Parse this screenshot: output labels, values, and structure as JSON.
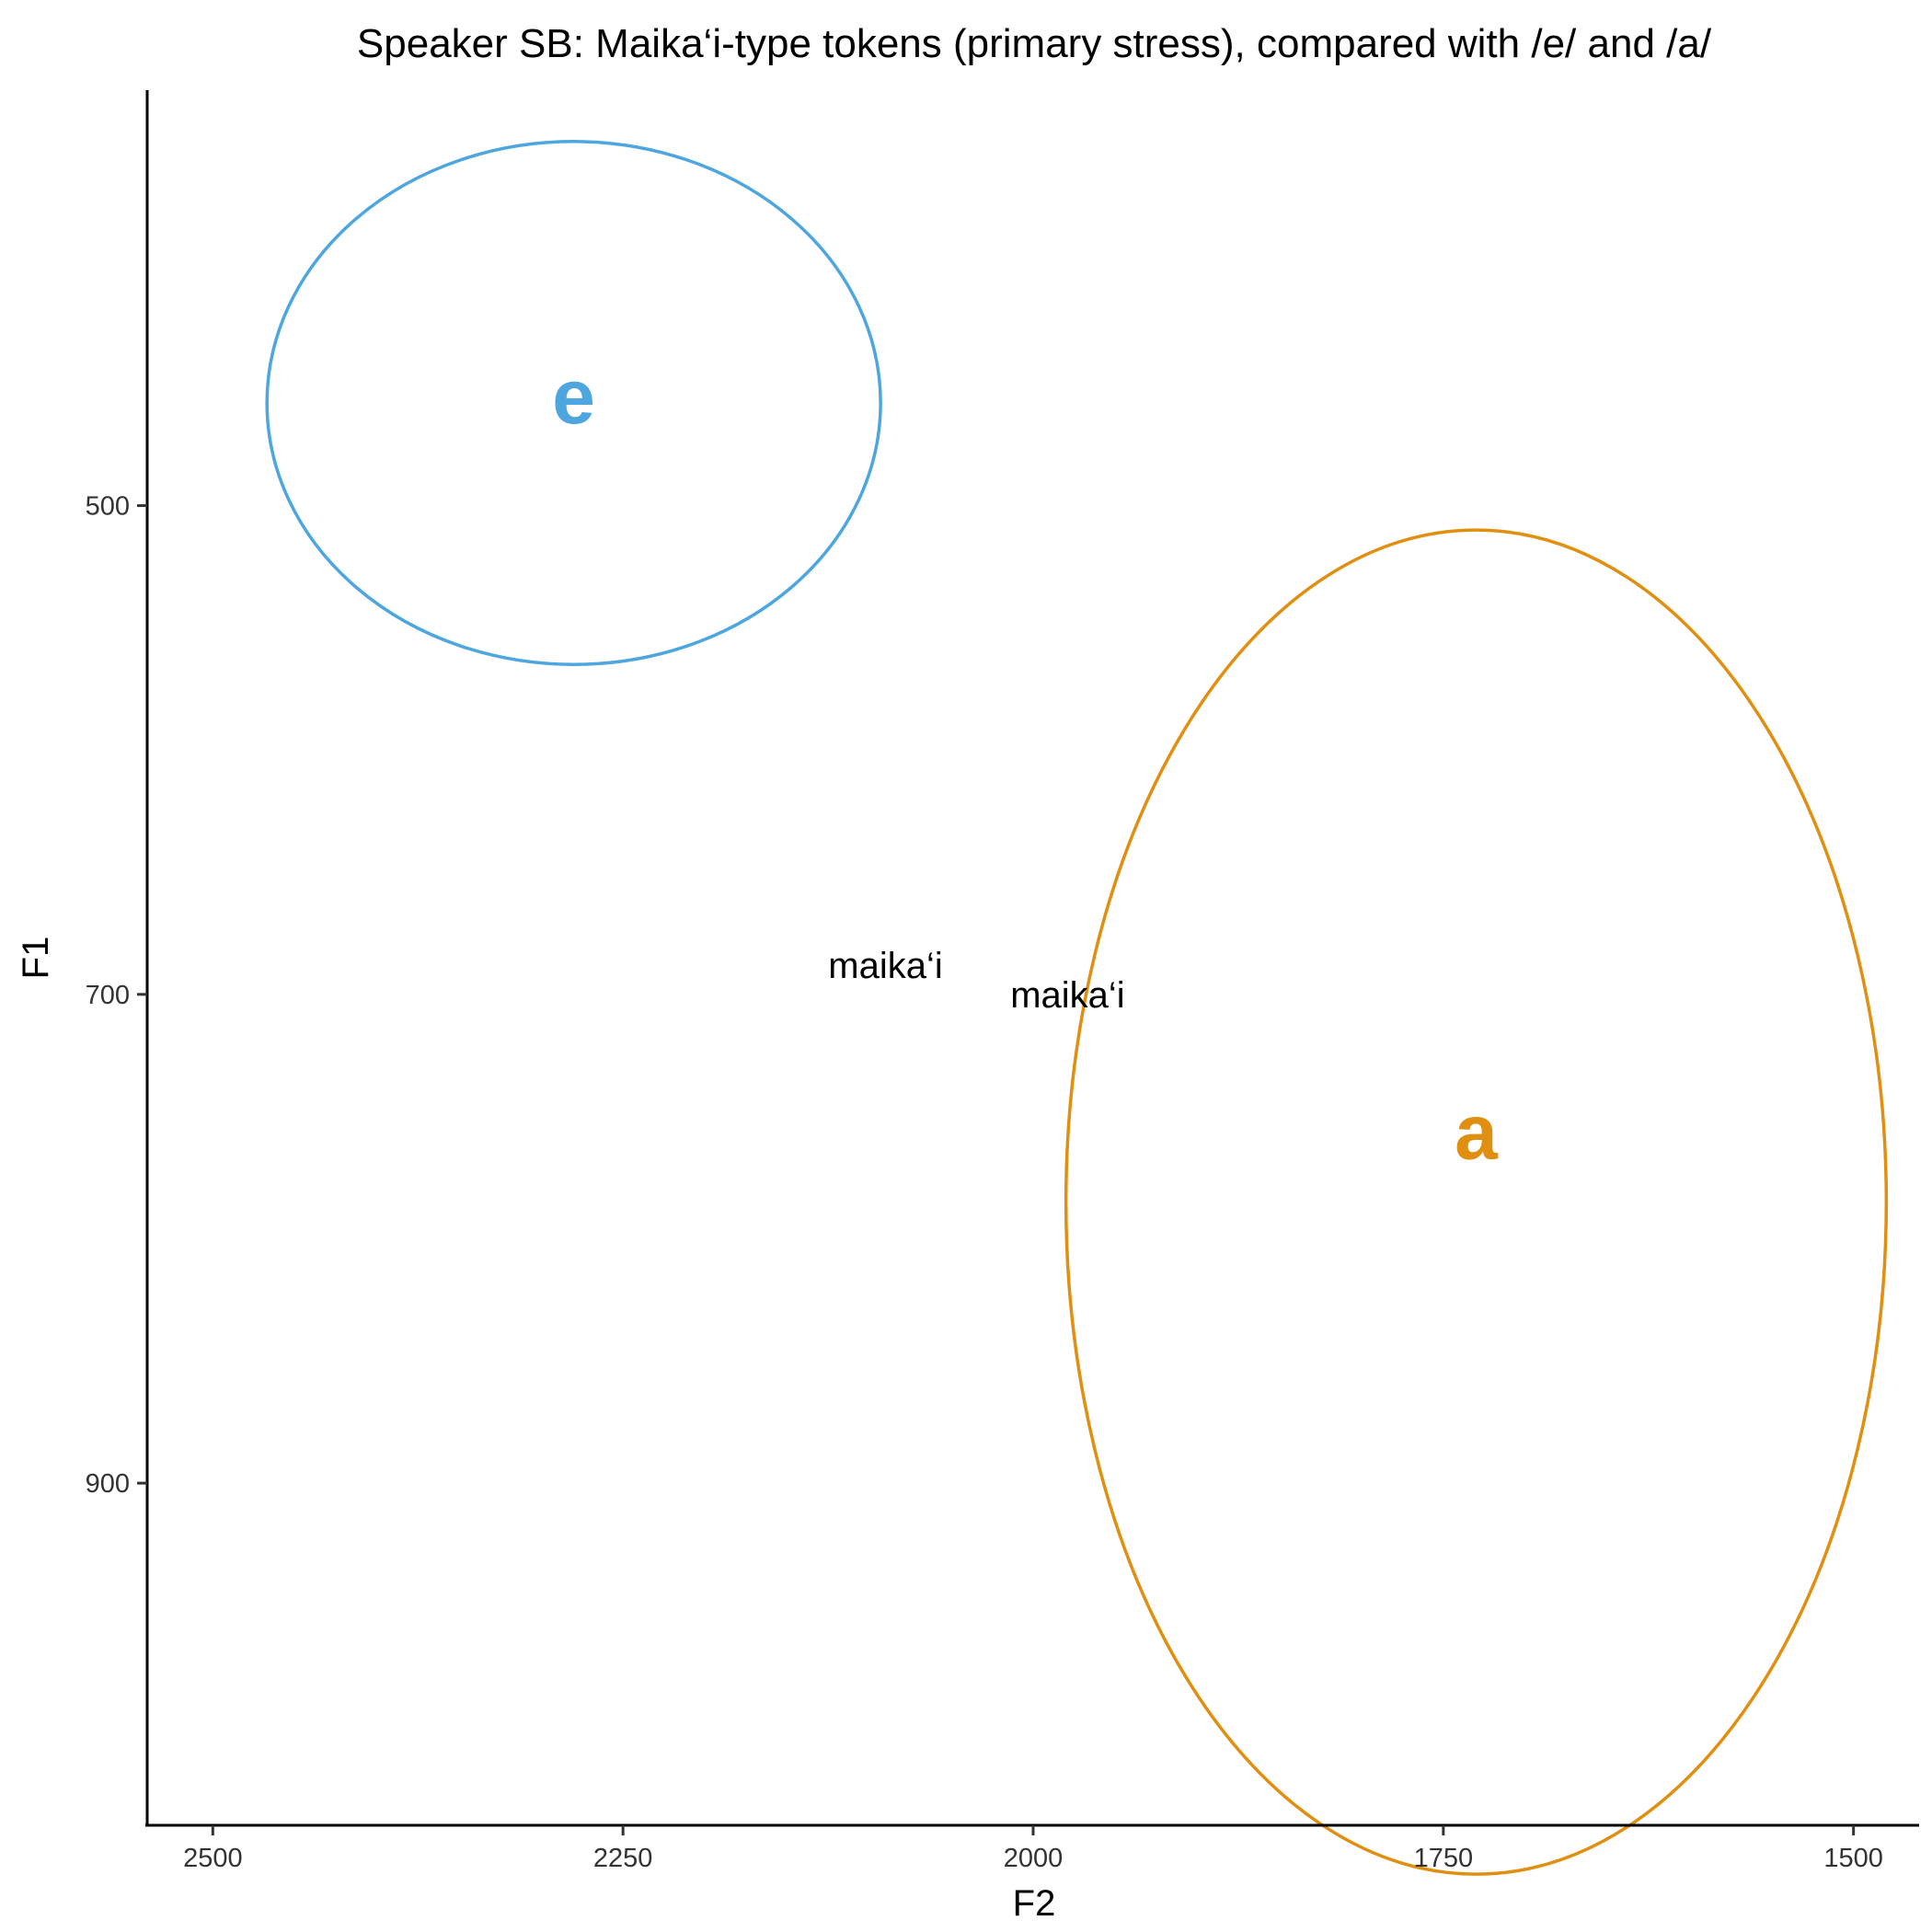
{
  "chart_data": {
    "type": "scatter",
    "title": "Speaker SB: Maika‘i-type tokens (primary stress), compared with /e/ and /a/",
    "xlabel": "F2",
    "ylabel": "F1",
    "x_reversed": true,
    "y_reversed": true,
    "xlim": [
      2540,
      1460
    ],
    "ylim": [
      330,
      1040
    ],
    "xticks": [
      2500,
      2250,
      2000,
      1750,
      1500
    ],
    "yticks": [
      500,
      700,
      900
    ],
    "grid": false,
    "legend": "none",
    "tokens": [
      {
        "label": "maika‘i",
        "x": 2090,
        "y": 688
      },
      {
        "label": "maika‘i",
        "x": 1979,
        "y": 700
      }
    ],
    "vowels": [
      {
        "label": "e",
        "x": 2280,
        "y": 455,
        "color": "#4da6e0",
        "rx": 187,
        "ry": 107,
        "ellipse_center": [
          2280,
          458
        ]
      },
      {
        "label": "a",
        "x": 1730,
        "y": 756,
        "color": "#e08f10",
        "rx": 250,
        "ry": 275,
        "ellipse_center": [
          1730,
          785
        ]
      }
    ]
  }
}
